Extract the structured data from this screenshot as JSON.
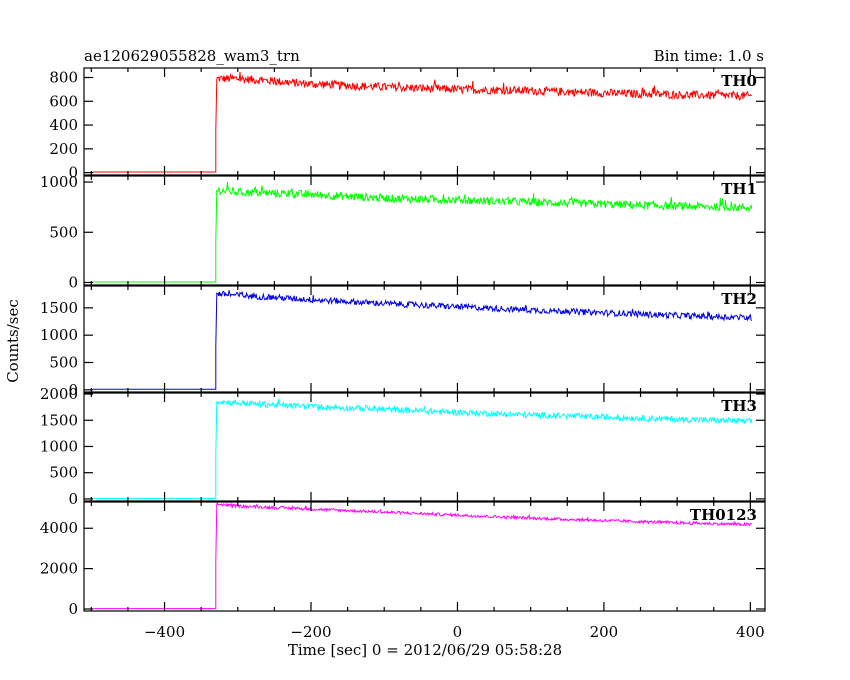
{
  "header": {
    "title": "ae120629055828_wam3_trn",
    "bin_time": "Bin time: 1.0 s"
  },
  "chart_data": {
    "type": "line",
    "title": "ae120629055828_wam3_trn",
    "subtitle": "Bin time: 1.0 s",
    "xlabel": "Time [sec] 0 = 2012/06/29 05:58:28",
    "ylabel": "Counts/sec",
    "xlim": [
      -510,
      420
    ],
    "x_ticks": [
      -400,
      -200,
      0,
      200,
      400
    ],
    "x_tick_labels": [
      "−400",
      "−200",
      "0",
      "200",
      "400"
    ],
    "onset_time": -330,
    "x_end": 402,
    "grid": false,
    "panels": [
      {
        "name": "TH0",
        "color": "#ff0000",
        "ylim": [
          -20,
          880
        ],
        "y_ticks": [
          0,
          200,
          400,
          600,
          800
        ],
        "y_tick_labels": [
          "0",
          "200",
          "400",
          "600",
          "800"
        ],
        "pre_onset_level": 5,
        "points": [
          [
            -330,
            790
          ],
          [
            -300,
            790
          ],
          [
            -200,
            745
          ],
          [
            -100,
            720
          ],
          [
            0,
            700
          ],
          [
            100,
            690
          ],
          [
            200,
            670
          ],
          [
            300,
            655
          ],
          [
            400,
            645
          ]
        ],
        "noise": 35
      },
      {
        "name": "TH1",
        "color": "#00ff00",
        "ylim": [
          -25,
          1060
        ],
        "y_ticks": [
          0,
          500,
          1000
        ],
        "y_tick_labels": [
          "0",
          "500",
          "1000"
        ],
        "pre_onset_level": 5,
        "points": [
          [
            -330,
            920
          ],
          [
            -300,
            900
          ],
          [
            -200,
            875
          ],
          [
            -100,
            840
          ],
          [
            0,
            820
          ],
          [
            100,
            800
          ],
          [
            200,
            780
          ],
          [
            300,
            760
          ],
          [
            400,
            745
          ]
        ],
        "noise": 40
      },
      {
        "name": "TH2",
        "color": "#0000e0",
        "ylim": [
          -40,
          1900
        ],
        "y_ticks": [
          0,
          500,
          1000,
          1500
        ],
        "y_tick_labels": [
          "0",
          "500",
          "1000",
          "1500"
        ],
        "pre_onset_level": 10,
        "points": [
          [
            -330,
            1760
          ],
          [
            -300,
            1730
          ],
          [
            -200,
            1650
          ],
          [
            -100,
            1580
          ],
          [
            0,
            1520
          ],
          [
            100,
            1460
          ],
          [
            200,
            1410
          ],
          [
            300,
            1360
          ],
          [
            400,
            1320
          ]
        ],
        "noise": 55
      },
      {
        "name": "TH3",
        "color": "#00ffff",
        "ylim": [
          -40,
          2020
        ],
        "y_ticks": [
          0,
          500,
          1000,
          1500,
          2000
        ],
        "y_tick_labels": [
          "0",
          "500",
          "1000",
          "1500",
          "2000"
        ],
        "pre_onset_level": 10,
        "points": [
          [
            -330,
            1860
          ],
          [
            -300,
            1830
          ],
          [
            -200,
            1760
          ],
          [
            -100,
            1710
          ],
          [
            0,
            1650
          ],
          [
            100,
            1600
          ],
          [
            200,
            1560
          ],
          [
            300,
            1520
          ],
          [
            400,
            1480
          ]
        ],
        "noise": 55
      },
      {
        "name": "TH0123",
        "color": "#ff00ff",
        "ylim": [
          -100,
          5300
        ],
        "y_ticks": [
          0,
          2000,
          4000
        ],
        "y_tick_labels": [
          "0",
          "2000",
          "4000"
        ],
        "pre_onset_level": 20,
        "points": [
          [
            -330,
            5200
          ],
          [
            -300,
            5100
          ],
          [
            -200,
            4950
          ],
          [
            -100,
            4800
          ],
          [
            0,
            4650
          ],
          [
            100,
            4500
          ],
          [
            200,
            4380
          ],
          [
            300,
            4270
          ],
          [
            400,
            4180
          ]
        ],
        "noise": 70
      }
    ]
  }
}
